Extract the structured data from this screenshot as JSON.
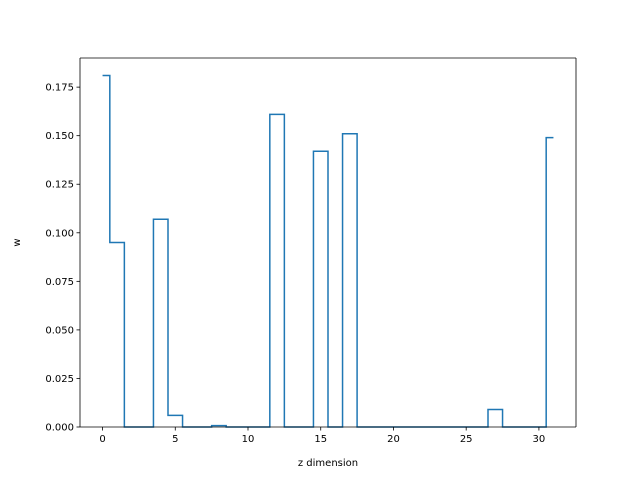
{
  "chart_data": {
    "type": "line",
    "drawstyle": "steps-mid",
    "title": "",
    "xlabel": "z dimension",
    "ylabel": "w",
    "xlim": [
      -1.55,
      32.55
    ],
    "ylim": [
      0.0,
      0.19
    ],
    "grid": false,
    "line_color": "#1f77b4",
    "x_ticks": [
      0,
      5,
      10,
      15,
      20,
      25,
      30
    ],
    "x_tick_labels": [
      "0",
      "5",
      "10",
      "15",
      "20",
      "25",
      "30"
    ],
    "y_ticks": [
      0.0,
      0.025,
      0.05,
      0.075,
      0.1,
      0.125,
      0.15,
      0.175
    ],
    "y_tick_labels": [
      "0.000",
      "0.025",
      "0.050",
      "0.075",
      "0.100",
      "0.125",
      "0.150",
      "0.175"
    ],
    "series": [
      {
        "x": [
          0,
          1,
          2,
          3,
          4,
          5,
          6,
          7,
          8,
          9,
          10,
          11,
          12,
          13,
          14,
          15,
          16,
          17,
          18,
          19,
          20,
          21,
          22,
          23,
          24,
          25,
          26,
          27,
          28,
          29,
          30,
          31
        ],
        "values": [
          0.181,
          0.095,
          0.0,
          0.0,
          0.107,
          0.006,
          0.0,
          0.0,
          0.0007,
          0.0,
          0.0,
          0.0,
          0.161,
          0.0,
          0.0,
          0.142,
          0.0,
          0.151,
          0.0,
          0.0,
          0.0,
          0.0,
          0.0,
          0.0,
          0.0,
          0.0,
          0.0,
          0.009,
          0.0,
          0.0,
          0.0,
          0.149
        ]
      }
    ]
  }
}
